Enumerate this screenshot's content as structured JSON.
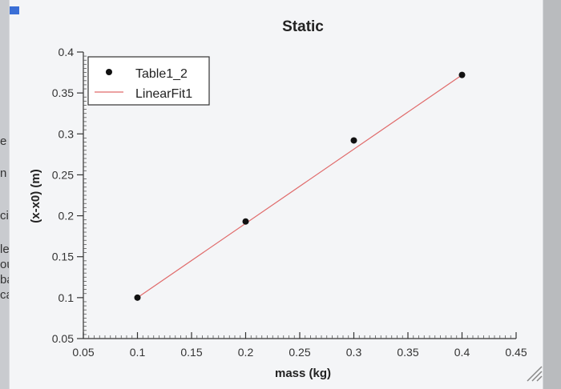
{
  "edge_text": [
    "e",
    "n",
    "cir",
    "le",
    "ou",
    "bat",
    "car"
  ],
  "chart_data": {
    "type": "scatter",
    "title": "Static",
    "xlabel": "mass (kg)",
    "ylabel": "(x-x0) (m)",
    "xlim": [
      0.05,
      0.45
    ],
    "ylim": [
      0.05,
      0.4
    ],
    "xticks": [
      "0.05",
      "0.1",
      "0.15",
      "0.2",
      "0.25",
      "0.3",
      "0.35",
      "0.4",
      "0.45"
    ],
    "yticks": [
      "0.05",
      "0.1",
      "0.15",
      "0.2",
      "0.25",
      "0.3",
      "0.35",
      "0.4"
    ],
    "series": [
      {
        "name": "Table1_2",
        "kind": "scatter",
        "color": "#111111",
        "x": [
          0.1,
          0.2,
          0.3,
          0.4
        ],
        "y": [
          0.1,
          0.193,
          0.292,
          0.372
        ]
      },
      {
        "name": "LinearFit1",
        "kind": "line",
        "color": "#e06a6a",
        "x": [
          0.1,
          0.4
        ],
        "y": [
          0.1,
          0.372
        ]
      }
    ],
    "legend_position": "top-left",
    "grid": false
  }
}
